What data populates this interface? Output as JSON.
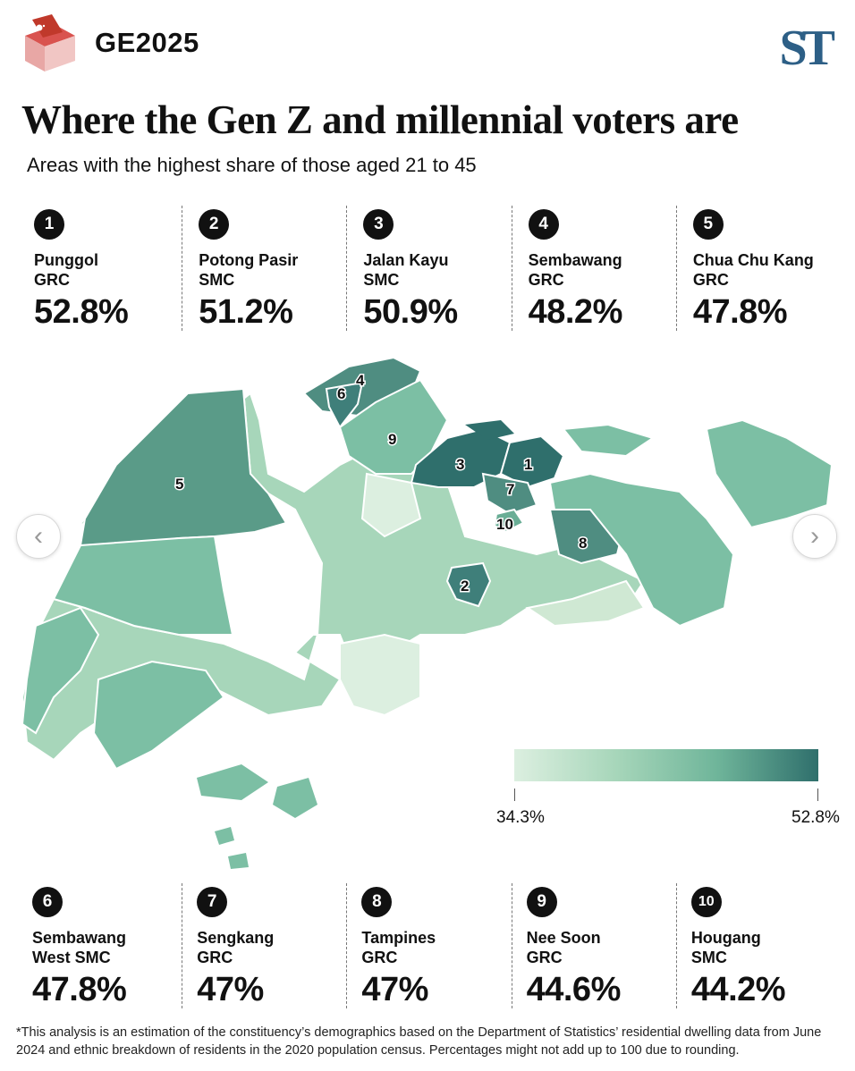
{
  "header": {
    "brand": "GE2025",
    "logo": "ST",
    "ballot_icon": "ballot-box-icon"
  },
  "title": "Where the Gen Z and millennial voters are",
  "subtitle": "Areas with the highest share of those aged 21 to 45",
  "top_ranks": [
    {
      "rank": "1",
      "name": "Punggol",
      "type": "GRC",
      "pct": "52.8%"
    },
    {
      "rank": "2",
      "name": "Potong Pasir",
      "type": "SMC",
      "pct": "51.2%"
    },
    {
      "rank": "3",
      "name": "Jalan Kayu",
      "type": "SMC",
      "pct": "50.9%"
    },
    {
      "rank": "4",
      "name": "Sembawang",
      "type": "GRC",
      "pct": "48.2%"
    },
    {
      "rank": "5",
      "name": "Chua Chu Kang",
      "type": "GRC",
      "pct": "47.8%"
    }
  ],
  "bottom_ranks": [
    {
      "rank": "6",
      "name": "Sembawang",
      "type": "West SMC",
      "pct": "47.8%"
    },
    {
      "rank": "7",
      "name": "Sengkang",
      "type": "GRC",
      "pct": "47%"
    },
    {
      "rank": "8",
      "name": "Tampines",
      "type": "GRC",
      "pct": "47%"
    },
    {
      "rank": "9",
      "name": "Nee Soon",
      "type": "GRC",
      "pct": "44.6%"
    },
    {
      "rank": "10",
      "name": "Hougang",
      "type": "SMC",
      "pct": "44.2%"
    }
  ],
  "map": {
    "labels": [
      "1",
      "2",
      "3",
      "4",
      "5",
      "6",
      "7",
      "8",
      "9",
      "10"
    ],
    "colors": {
      "light": "#dcefe0",
      "mid": "#a7d6ba",
      "mid2": "#7cbfa4",
      "dark": "#3f7f7a",
      "darkest": "#2f6f6c"
    }
  },
  "legend": {
    "min": "34.3%",
    "max": "52.8%"
  },
  "nav": {
    "prev": "‹",
    "next": "›"
  },
  "footnote": "*This analysis is an estimation of the constituency’s demographics based on the Department of Statistics’ residential dwelling data from June 2024 and ethnic breakdown of residents in the 2020 population census. Percentages might not add up to 100 due to rounding."
}
